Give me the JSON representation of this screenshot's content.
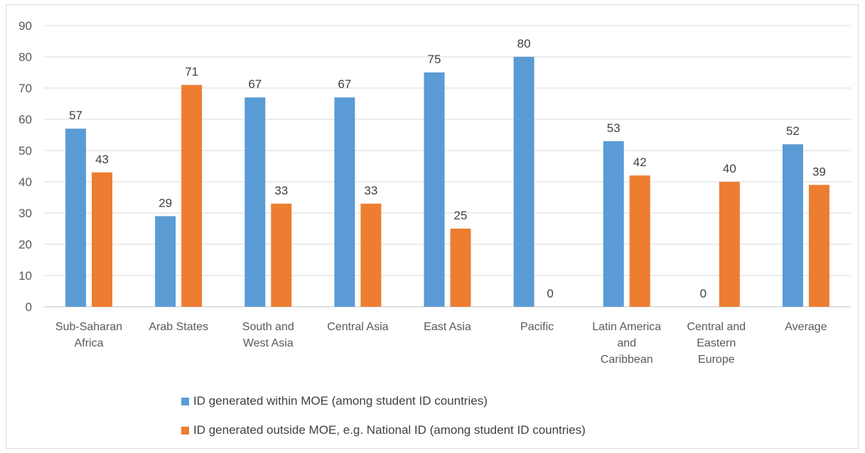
{
  "chart_data": {
    "type": "bar",
    "categories": [
      [
        "Sub-Saharan",
        "Africa"
      ],
      [
        "Arab States"
      ],
      [
        "South and",
        "West Asia"
      ],
      [
        "Central Asia"
      ],
      [
        "East Asia"
      ],
      [
        "Pacific"
      ],
      [
        "Latin America",
        "and",
        "Caribbean"
      ],
      [
        "Central and",
        "Eastern",
        "Europe"
      ],
      [
        "Average"
      ]
    ],
    "series": [
      {
        "name": "ID generated within MOE (among student ID countries)",
        "color": "#5b9bd5",
        "values": [
          57,
          29,
          67,
          67,
          75,
          80,
          53,
          0,
          52
        ]
      },
      {
        "name": "ID generated outside MOE, e.g. National ID (among student ID countries)",
        "color": "#ed7d31",
        "values": [
          43,
          71,
          33,
          33,
          25,
          0,
          42,
          40,
          39
        ]
      }
    ],
    "ylim": [
      0,
      90
    ],
    "yticks": [
      0,
      10,
      20,
      30,
      40,
      50,
      60,
      70,
      80,
      90
    ],
    "grid": true,
    "data_labels": true,
    "legend_position": "bottom-left"
  }
}
